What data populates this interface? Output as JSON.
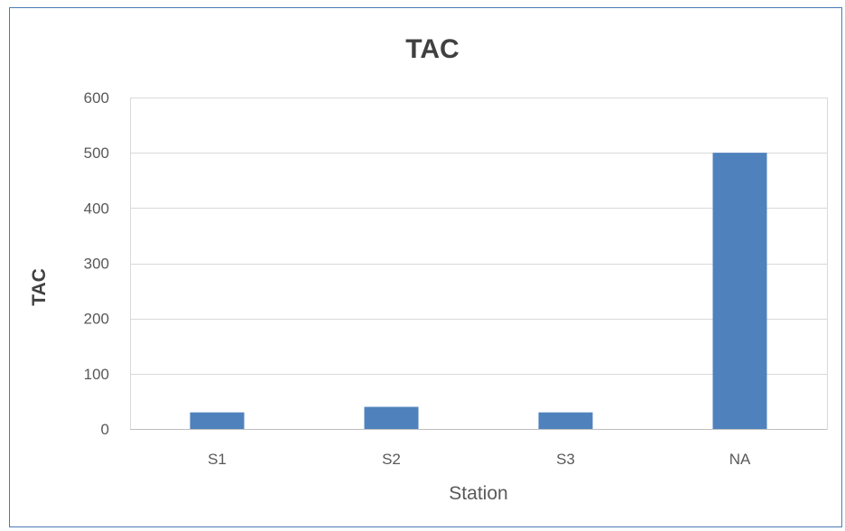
{
  "colors": {
    "bar": "#4f81bd",
    "gridline": "#d9d9d9",
    "frame_border": "#4a79b5",
    "plot_border": "#d9d9d9"
  },
  "chart_data": {
    "type": "bar",
    "title": "TAC",
    "xlabel": "Station",
    "ylabel": "TAC",
    "categories": [
      "S1",
      "S2",
      "S3",
      "NA"
    ],
    "series": [
      {
        "values": [
          30,
          40,
          30,
          500
        ]
      }
    ],
    "ylim": [
      0,
      600
    ],
    "yticks": [
      0,
      100,
      200,
      300,
      400,
      500,
      600
    ],
    "grid": true,
    "legend": "none"
  }
}
